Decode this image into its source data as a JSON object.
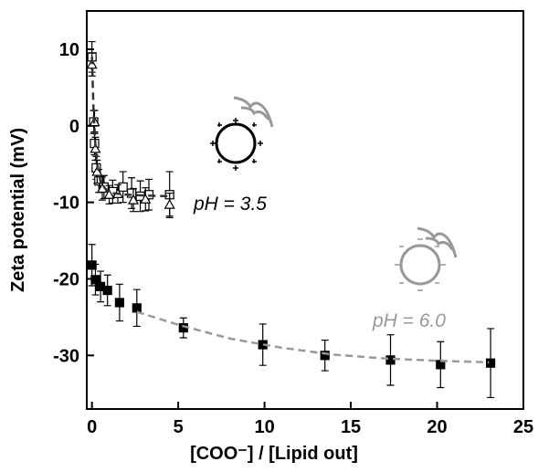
{
  "chart_data": {
    "type": "scatter",
    "xlabel": "[COO⁻] / [Lipid out]",
    "ylabel": "Zeta potential (mV)",
    "annotations": [
      "pH = 3.5",
      "pH = 6.0"
    ],
    "xlim": [
      -0.3,
      25
    ],
    "xticks": [
      0,
      5,
      10,
      15,
      20,
      25
    ],
    "ylim": [
      -37,
      15
    ],
    "yticks": [
      -30,
      -20,
      -10,
      0,
      10
    ],
    "series": [
      {
        "marker": "square-filled",
        "color": "#000000",
        "x": [
          0,
          0.2,
          0.5,
          0.9,
          1.6,
          2.6,
          5.3,
          9.9,
          13.5,
          17.3,
          20.2,
          23.1
        ],
        "values": [
          -18.2,
          -20.1,
          -21,
          -21.5,
          -23.1,
          -23.8,
          -26.4,
          -28.6,
          -30,
          -30.6,
          -31.2,
          -31
        ],
        "errors": [
          2.7,
          2,
          2,
          2,
          2.4,
          2.4,
          1.3,
          2.7,
          2,
          3.3,
          3,
          4.5
        ]
      },
      {
        "marker": "square-open",
        "color": "#000000",
        "x": [
          0,
          0.1,
          0.15,
          0.25,
          0.4,
          0.7,
          1.2,
          1.8,
          2.3,
          2.8,
          3.3,
          4.5
        ],
        "values": [
          9,
          0.5,
          -2.3,
          -5.5,
          -7.2,
          -8,
          -8.6,
          -8,
          -8.8,
          -9.2,
          -9,
          -9
        ],
        "errors": [
          2,
          1.5,
          1.5,
          1.5,
          1.5,
          1.5,
          1.5,
          2,
          2,
          2,
          2,
          3
        ]
      },
      {
        "marker": "triangle-open",
        "color": "#000000",
        "x": [
          0,
          0.15,
          0.2,
          0.3,
          0.6,
          1,
          1.5,
          2.4,
          3.1,
          4.5
        ],
        "values": [
          8,
          0.5,
          -3,
          -6,
          -8.2,
          -9,
          -8.9,
          -9.7,
          -9.6,
          -10.3
        ],
        "errors": [
          1.5,
          1.5,
          1.5,
          1.5,
          1.5,
          1.2,
          1.2,
          1.5,
          1.5,
          1.5
        ]
      },
      {
        "marker": "line",
        "color": "#333333",
        "x": [
          0,
          0.1,
          0.2,
          0.3,
          0.5,
          0.8,
          1.2,
          2,
          3,
          4.5
        ],
        "values": [
          9,
          1.5,
          -2.5,
          -5,
          -7.3,
          -8.3,
          -8.8,
          -9,
          -9.1,
          -9.2
        ]
      },
      {
        "marker": "line",
        "color": "#999999",
        "x": [
          2.6,
          5,
          8,
          11,
          14,
          17,
          20,
          23
        ],
        "values": [
          -24.3,
          -26,
          -27.8,
          -29,
          -29.9,
          -30.4,
          -30.7,
          -30.9
        ]
      }
    ]
  }
}
